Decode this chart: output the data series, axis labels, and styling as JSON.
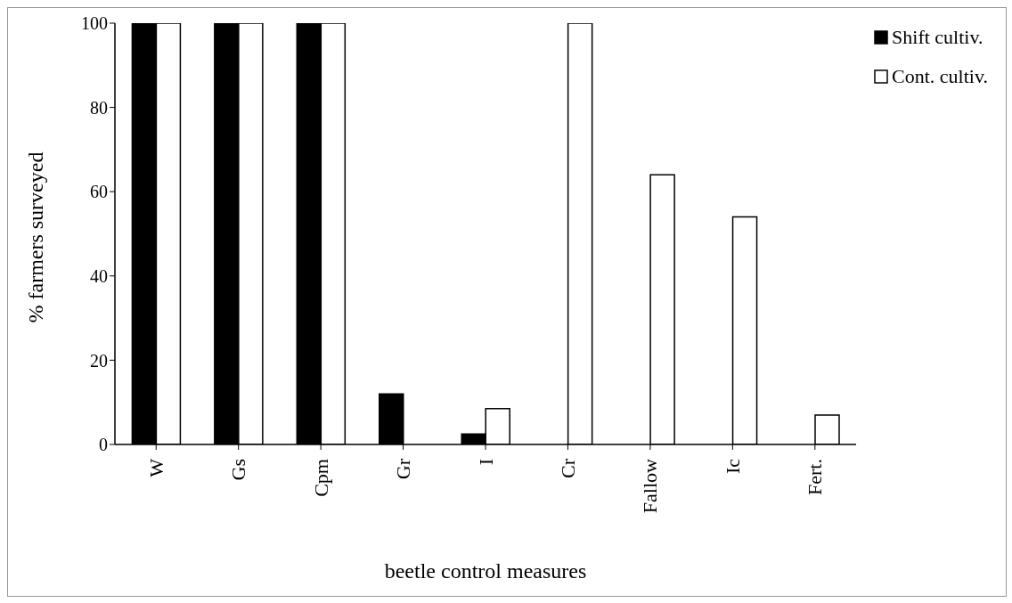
{
  "chart_data": {
    "type": "bar",
    "xlabel": "beetle control measures",
    "ylabel": "% farmers surveyed",
    "categories": [
      "W",
      "Gs",
      "Cpm",
      "Gr",
      "I",
      "Cr",
      "Fallow",
      "Ic",
      "Fert."
    ],
    "series": [
      {
        "name": "Shift cultiv.",
        "color": "#000000",
        "values": [
          100,
          100,
          100,
          12,
          2.5,
          0,
          0,
          0,
          0
        ]
      },
      {
        "name": "Cont. cultiv.",
        "color": "#ffffff",
        "values": [
          100,
          100,
          100,
          0,
          8.5,
          100,
          64,
          54,
          7
        ]
      }
    ],
    "ylim": [
      0,
      100
    ],
    "yticks": [
      0,
      20,
      40,
      60,
      80,
      100
    ],
    "grid": false,
    "legend": "top right"
  }
}
